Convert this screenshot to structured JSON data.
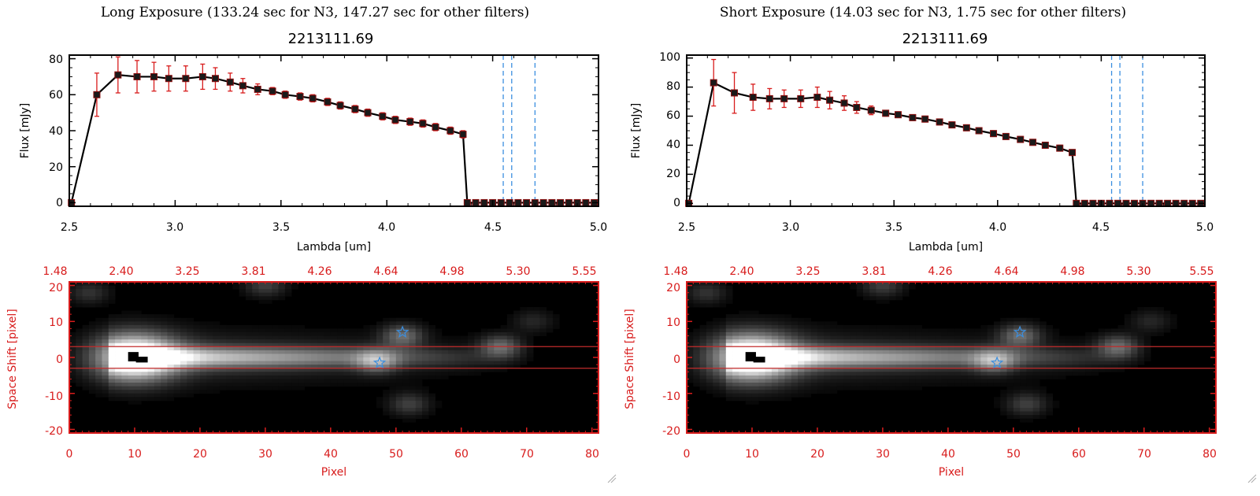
{
  "panels": [
    {
      "heading": "Long Exposure (133.24 sec for N3, 147.27 sec for other filters)",
      "spectrum": {
        "title": "2213111.69",
        "xlabel": "Lambda [um]",
        "ylabel": "Flux [mJy]",
        "xlim": [
          2.5,
          5.0
        ],
        "ylim": [
          -2,
          82
        ],
        "xticks": [
          "2.5",
          "3.0",
          "3.5",
          "4.0",
          "4.5",
          "5.0"
        ],
        "yticks": [
          "0",
          "20",
          "40",
          "60",
          "80"
        ]
      },
      "image": {
        "xlabel": "Pixel",
        "ylabel": "Space Shift [pixel]",
        "top_ticks": [
          "1.48",
          "2.40",
          "3.25",
          "3.81",
          "4.26",
          "4.64",
          "4.98",
          "5.30",
          "5.55"
        ],
        "xticks": [
          "0",
          "10",
          "20",
          "30",
          "40",
          "50",
          "60",
          "70",
          "80"
        ],
        "yticks": [
          "20",
          "10",
          "0",
          "-10",
          "-20"
        ]
      }
    },
    {
      "heading": "Short Exposure (14.03 sec for N3, 1.75 sec for other filters)",
      "spectrum": {
        "title": "2213111.69",
        "xlabel": "Lambda [um]",
        "ylabel": "Flux [mJy]",
        "xlim": [
          2.5,
          5.0
        ],
        "ylim": [
          -2,
          102
        ],
        "xticks": [
          "2.5",
          "3.0",
          "3.5",
          "4.0",
          "4.5",
          "5.0"
        ],
        "yticks": [
          "0",
          "20",
          "40",
          "60",
          "80",
          "100"
        ]
      },
      "image": {
        "xlabel": "Pixel",
        "ylabel": "Space Shift [pixel]",
        "top_ticks": [
          "1.48",
          "2.40",
          "3.25",
          "3.81",
          "4.26",
          "4.64",
          "4.98",
          "5.30",
          "5.55"
        ],
        "xticks": [
          "0",
          "10",
          "20",
          "30",
          "40",
          "50",
          "60",
          "70",
          "80"
        ],
        "yticks": [
          "20",
          "10",
          "0",
          "-10",
          "-20"
        ]
      }
    }
  ],
  "chart_data": [
    {
      "type": "line",
      "title": "2213111.69",
      "xlabel": "Lambda [um]",
      "ylabel": "Flux [mJy]",
      "xlim": [
        2.5,
        5.0
      ],
      "ylim": [
        -2,
        82
      ],
      "x": [
        2.51,
        2.63,
        2.73,
        2.82,
        2.9,
        2.97,
        3.05,
        3.13,
        3.19,
        3.26,
        3.32,
        3.39,
        3.46,
        3.52,
        3.59,
        3.65,
        3.72,
        3.78,
        3.85,
        3.91,
        3.98,
        4.04,
        4.11,
        4.17,
        4.23,
        4.3,
        4.36,
        4.38,
        4.42,
        4.46,
        4.5,
        4.54,
        4.58,
        4.62,
        4.66,
        4.7,
        4.74,
        4.78,
        4.82,
        4.86,
        4.9,
        4.94,
        4.98
      ],
      "series": [
        {
          "values": [
            0,
            60,
            71,
            70,
            70,
            69,
            69,
            70,
            69,
            67,
            65,
            63,
            62,
            60,
            59,
            58,
            56,
            54,
            52,
            50,
            48,
            46,
            45,
            44,
            42,
            40,
            38,
            0,
            0,
            0,
            0,
            0,
            0,
            0,
            0,
            0,
            0,
            0,
            0,
            0,
            0,
            0,
            0
          ],
          "errors": [
            0,
            12,
            10,
            9,
            8,
            7,
            7,
            7,
            6,
            5,
            4,
            3,
            2,
            2,
            2,
            2,
            2,
            2,
            2,
            2,
            2,
            2,
            2,
            2,
            2,
            2,
            2,
            0,
            0,
            0,
            0,
            0,
            0,
            0,
            0,
            0,
            0,
            0,
            0,
            0,
            0,
            0,
            0
          ]
        }
      ],
      "vlines": [
        4.55,
        4.59,
        4.7
      ],
      "colors": {
        "line": "#000000",
        "marker": "#000000",
        "errorbar": "#d81c1c",
        "vline": "#3b8fe0"
      }
    },
    {
      "type": "line",
      "title": "2213111.69",
      "xlabel": "Lambda [um]",
      "ylabel": "Flux [mJy]",
      "xlim": [
        2.5,
        5.0
      ],
      "ylim": [
        -2,
        102
      ],
      "x": [
        2.51,
        2.63,
        2.73,
        2.82,
        2.9,
        2.97,
        3.05,
        3.13,
        3.19,
        3.26,
        3.32,
        3.39,
        3.46,
        3.52,
        3.59,
        3.65,
        3.72,
        3.78,
        3.85,
        3.91,
        3.98,
        4.04,
        4.11,
        4.17,
        4.23,
        4.3,
        4.36,
        4.38,
        4.42,
        4.46,
        4.5,
        4.54,
        4.58,
        4.62,
        4.66,
        4.7,
        4.74,
        4.78,
        4.82,
        4.86,
        4.9,
        4.94,
        4.98
      ],
      "series": [
        {
          "values": [
            0,
            83,
            76,
            73,
            72,
            72,
            72,
            73,
            71,
            69,
            66,
            64,
            62,
            61,
            59,
            58,
            56,
            54,
            52,
            50,
            48,
            46,
            44,
            42,
            40,
            38,
            35,
            0,
            0,
            0,
            0,
            0,
            0,
            0,
            0,
            0,
            0,
            0,
            0,
            0,
            0,
            0,
            0
          ],
          "errors": [
            0,
            16,
            14,
            9,
            7,
            6,
            6,
            7,
            6,
            5,
            4,
            3,
            2,
            2,
            2,
            2,
            2,
            2,
            2,
            2,
            2,
            2,
            2,
            2,
            2,
            2,
            2,
            0,
            0,
            0,
            0,
            0,
            0,
            0,
            0,
            0,
            0,
            0,
            0,
            0,
            0,
            0,
            0
          ]
        }
      ],
      "vlines": [
        4.55,
        4.59,
        4.7
      ],
      "colors": {
        "line": "#000000",
        "marker": "#000000",
        "errorbar": "#d81c1c",
        "vline": "#3b8fe0"
      }
    },
    {
      "type": "heatmap",
      "xlabel": "Pixel",
      "ylabel": "Space Shift [pixel]",
      "xlim": [
        0,
        81
      ],
      "ylim": [
        -21,
        21
      ],
      "top_axis_ticks": [
        "1.48",
        "2.40",
        "3.25",
        "3.81",
        "4.26",
        "4.64",
        "4.98",
        "5.30",
        "5.55"
      ],
      "sources": [
        {
          "x": 10,
          "y": 0,
          "flux": 1.0
        },
        {
          "x": 47,
          "y": -1,
          "flux": 0.45
        },
        {
          "x": 51,
          "y": 6,
          "flux": 0.4
        },
        {
          "x": 66,
          "y": 3,
          "flux": 0.4
        },
        {
          "x": 30,
          "y": 20,
          "flux": 0.25
        },
        {
          "x": 3,
          "y": 18,
          "flux": 0.2
        },
        {
          "x": 52,
          "y": -13,
          "flux": 0.25
        },
        {
          "x": 71,
          "y": 10,
          "flux": 0.15
        }
      ],
      "aperture_lines": [
        3,
        -3
      ],
      "markers": [
        {
          "x": 47.5,
          "y": -1.5
        },
        {
          "x": 51,
          "y": 7
        }
      ],
      "colors": {
        "axes": "#d81c1c",
        "marker": "#3b8fe0",
        "aperture": "#c22b2b"
      }
    },
    {
      "type": "heatmap",
      "xlabel": "Pixel",
      "ylabel": "Space Shift [pixel]",
      "xlim": [
        0,
        81
      ],
      "ylim": [
        -21,
        21
      ],
      "top_axis_ticks": [
        "1.48",
        "2.40",
        "3.25",
        "3.81",
        "4.26",
        "4.64",
        "4.98",
        "5.30",
        "5.55"
      ],
      "sources": [
        {
          "x": 10,
          "y": 0,
          "flux": 1.0
        },
        {
          "x": 47,
          "y": -1,
          "flux": 0.45
        },
        {
          "x": 51,
          "y": 6,
          "flux": 0.4
        },
        {
          "x": 66,
          "y": 3,
          "flux": 0.4
        },
        {
          "x": 30,
          "y": 20,
          "flux": 0.25
        },
        {
          "x": 3,
          "y": 18,
          "flux": 0.2
        },
        {
          "x": 52,
          "y": -13,
          "flux": 0.25
        },
        {
          "x": 71,
          "y": 10,
          "flux": 0.15
        }
      ],
      "aperture_lines": [
        3,
        -3
      ],
      "markers": [
        {
          "x": 47.5,
          "y": -1.5
        },
        {
          "x": 51,
          "y": 7
        }
      ],
      "colors": {
        "axes": "#d81c1c",
        "marker": "#3b8fe0",
        "aperture": "#c22b2b"
      }
    }
  ]
}
